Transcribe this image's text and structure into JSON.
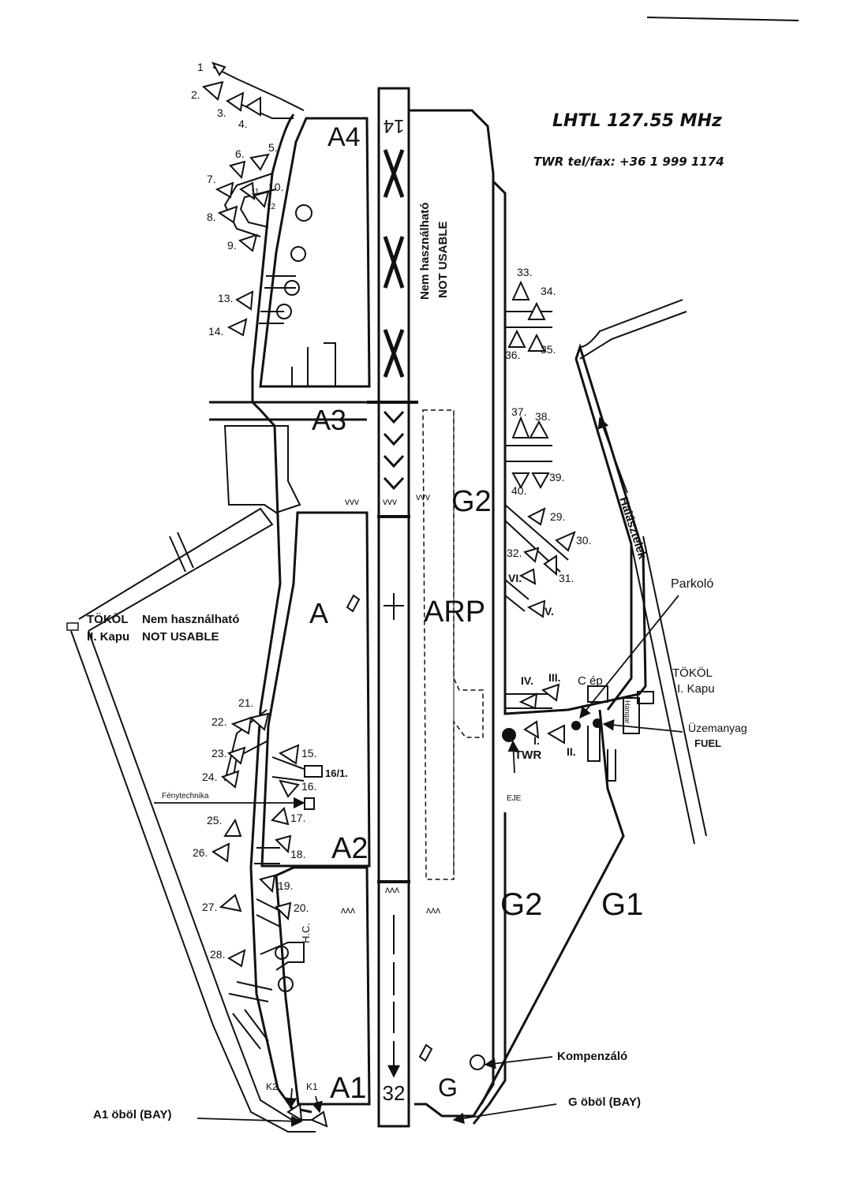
{
  "header": {
    "icao_freq": "LHTL   127.55 MHz",
    "twr_contact": "TWR tel/fax: +36 1 999 1174"
  },
  "runway": {
    "designator_north": "14",
    "designator_south": "32",
    "closed_label_hu": "Nem használható",
    "closed_label_en": "NOT USABLE",
    "arp": "ARP"
  },
  "taxiways": {
    "a4": "A4",
    "a3": "A3",
    "a": "A",
    "a2": "A2",
    "a1": "A1",
    "g2_north": "G2",
    "g2_south": "G2",
    "g1": "G1",
    "g": "G"
  },
  "gates": {
    "tokol_ii_name": "TÖKÖL",
    "tokol_ii_gate": "II. Kapu",
    "tokol_ii_hu": "Nem használható",
    "tokol_ii_en": "NOT USABLE",
    "tokol_i_name": "TÖKÖL",
    "tokol_i_gate": "I. Kapu"
  },
  "annotations": {
    "road": "Halásztelek",
    "parking": "Parkoló",
    "fuel_hu": "Üzemanyag",
    "fuel_en": "FUEL",
    "compass": "Kompenzáló",
    "a1_bay": "A1 öböl (BAY)",
    "g_bay": "G öböl (BAY)",
    "lighting": "Fénytechnika",
    "twr": "TWR",
    "eje": "EJE",
    "hangar": "Hangar",
    "c_building": "C ép",
    "hc": "H.C."
  },
  "stands_west": [
    "1",
    "2.",
    "3.",
    "4.",
    "5.",
    "6.",
    "7.",
    "8.",
    "9.",
    "10.",
    "11",
    "12",
    "13.",
    "14.",
    "15.",
    "16.",
    "16/1.",
    "17.",
    "18.",
    "19.",
    "20.",
    "21.",
    "22.",
    "23.",
    "24.",
    "25.",
    "26.",
    "27.",
    "28.",
    "K1",
    "K2"
  ],
  "stands_east": [
    "29.",
    "30.",
    "31.",
    "32.",
    "33.",
    "34.",
    "35.",
    "36.",
    "37.",
    "38.",
    "39.",
    "40.",
    "I.",
    "II.",
    "III.",
    "IV.",
    "V.",
    "VI."
  ]
}
